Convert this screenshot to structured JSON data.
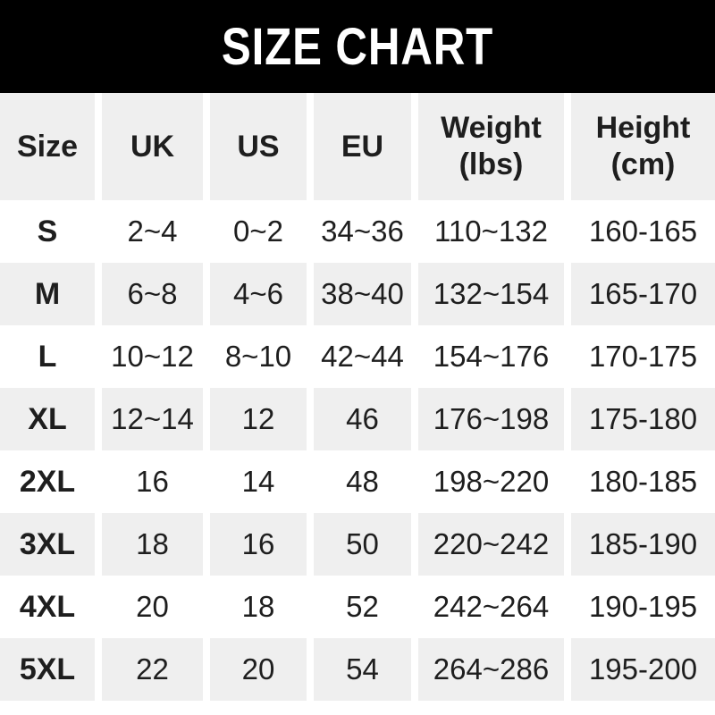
{
  "header": {
    "title": "SIZE CHART"
  },
  "colors": {
    "header_bar_bg": "#000000",
    "title_text": "#ffffff",
    "row_bg": "#ffffff",
    "row_alt_bg": "#efefef",
    "text": "#1e1e1e"
  },
  "chart_data": {
    "type": "table",
    "title": "SIZE CHART",
    "columns": [
      "Size",
      "UK",
      "US",
      "EU",
      "Weight (lbs)",
      "Height (cm)"
    ],
    "rows": [
      [
        "S",
        "2~4",
        "0~2",
        "34~36",
        "110~132",
        "160-165"
      ],
      [
        "M",
        "6~8",
        "4~6",
        "38~40",
        "132~154",
        "165-170"
      ],
      [
        "L",
        "10~12",
        "8~10",
        "42~44",
        "154~176",
        "170-175"
      ],
      [
        "XL",
        "12~14",
        "12",
        "46",
        "176~198",
        "175-180"
      ],
      [
        "2XL",
        "16",
        "14",
        "48",
        "198~220",
        "180-185"
      ],
      [
        "3XL",
        "18",
        "16",
        "50",
        "220~242",
        "185-190"
      ],
      [
        "4XL",
        "20",
        "18",
        "52",
        "242~264",
        "190-195"
      ],
      [
        "5XL",
        "22",
        "20",
        "54",
        "264~286",
        "195-200"
      ]
    ],
    "layout": {
      "header_row_background": "#efefef",
      "stripe_pattern": "rows alternate white/gray starting white after header",
      "column_divider": "8px white gap"
    }
  }
}
